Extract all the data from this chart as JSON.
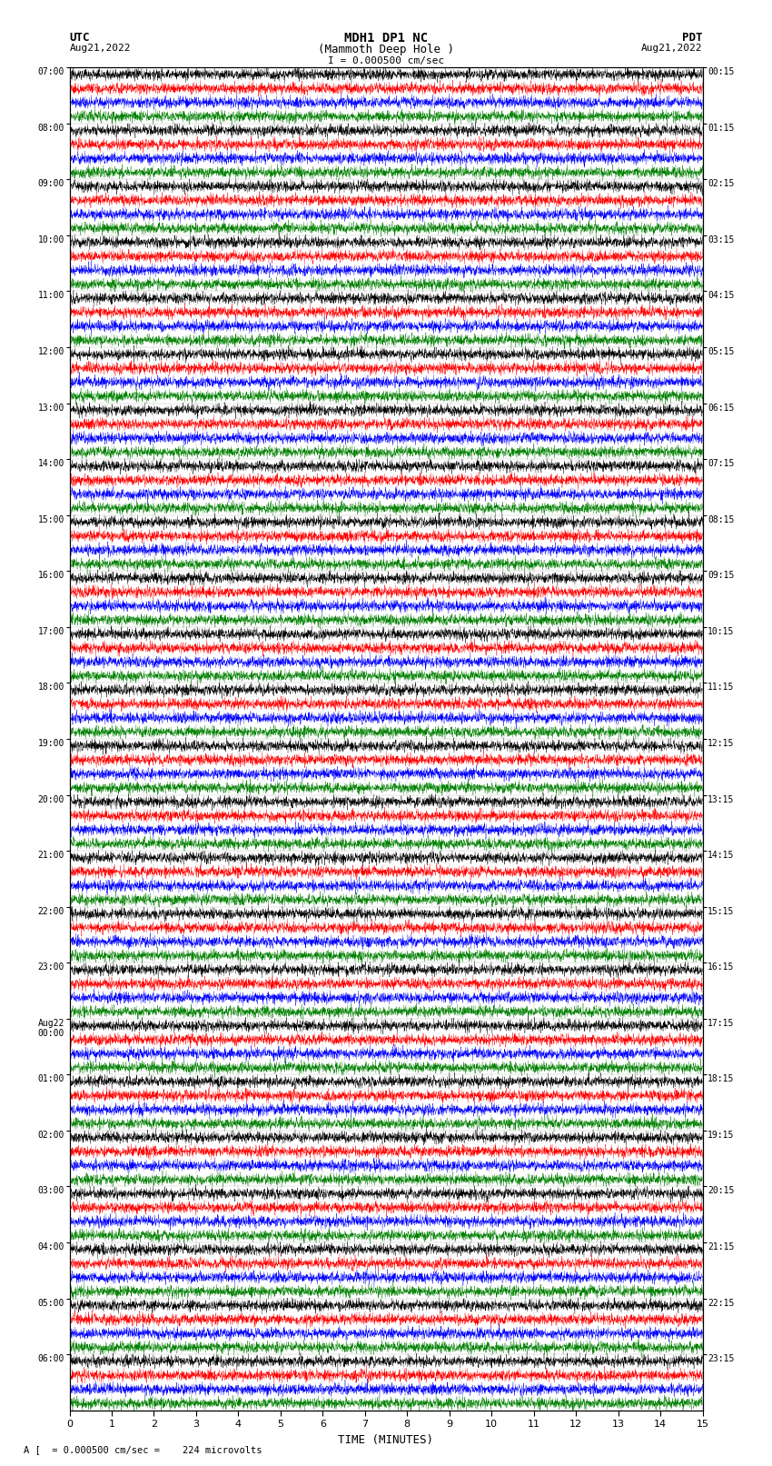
{
  "title_line1": "MDH1 DP1 NC",
  "title_line2": "(Mammoth Deep Hole )",
  "title_line3": "I = 0.000500 cm/sec",
  "xlabel": "TIME (MINUTES)",
  "footnote": "A [  = 0.000500 cm/sec =    224 microvolts",
  "utc_labels": [
    "07:00",
    "08:00",
    "09:00",
    "10:00",
    "11:00",
    "12:00",
    "13:00",
    "14:00",
    "15:00",
    "16:00",
    "17:00",
    "18:00",
    "19:00",
    "20:00",
    "21:00",
    "22:00",
    "23:00",
    "Aug22\n00:00",
    "01:00",
    "02:00",
    "03:00",
    "04:00",
    "05:00",
    "06:00"
  ],
  "pdt_labels": [
    "00:15",
    "01:15",
    "02:15",
    "03:15",
    "04:15",
    "05:15",
    "06:15",
    "07:15",
    "08:15",
    "09:15",
    "10:15",
    "11:15",
    "12:15",
    "13:15",
    "14:15",
    "15:15",
    "16:15",
    "17:15",
    "18:15",
    "19:15",
    "20:15",
    "21:15",
    "22:15",
    "23:15"
  ],
  "trace_colors": [
    "black",
    "red",
    "blue",
    "green"
  ],
  "n_hours": 24,
  "traces_per_hour": 4,
  "time_minutes": 15,
  "samples": 3600,
  "fig_width": 8.5,
  "fig_height": 16.13,
  "bg_color": "white",
  "base_noise": 0.4,
  "spike_prob": 0.015,
  "spike_amp": 2.5,
  "lw": 0.25
}
